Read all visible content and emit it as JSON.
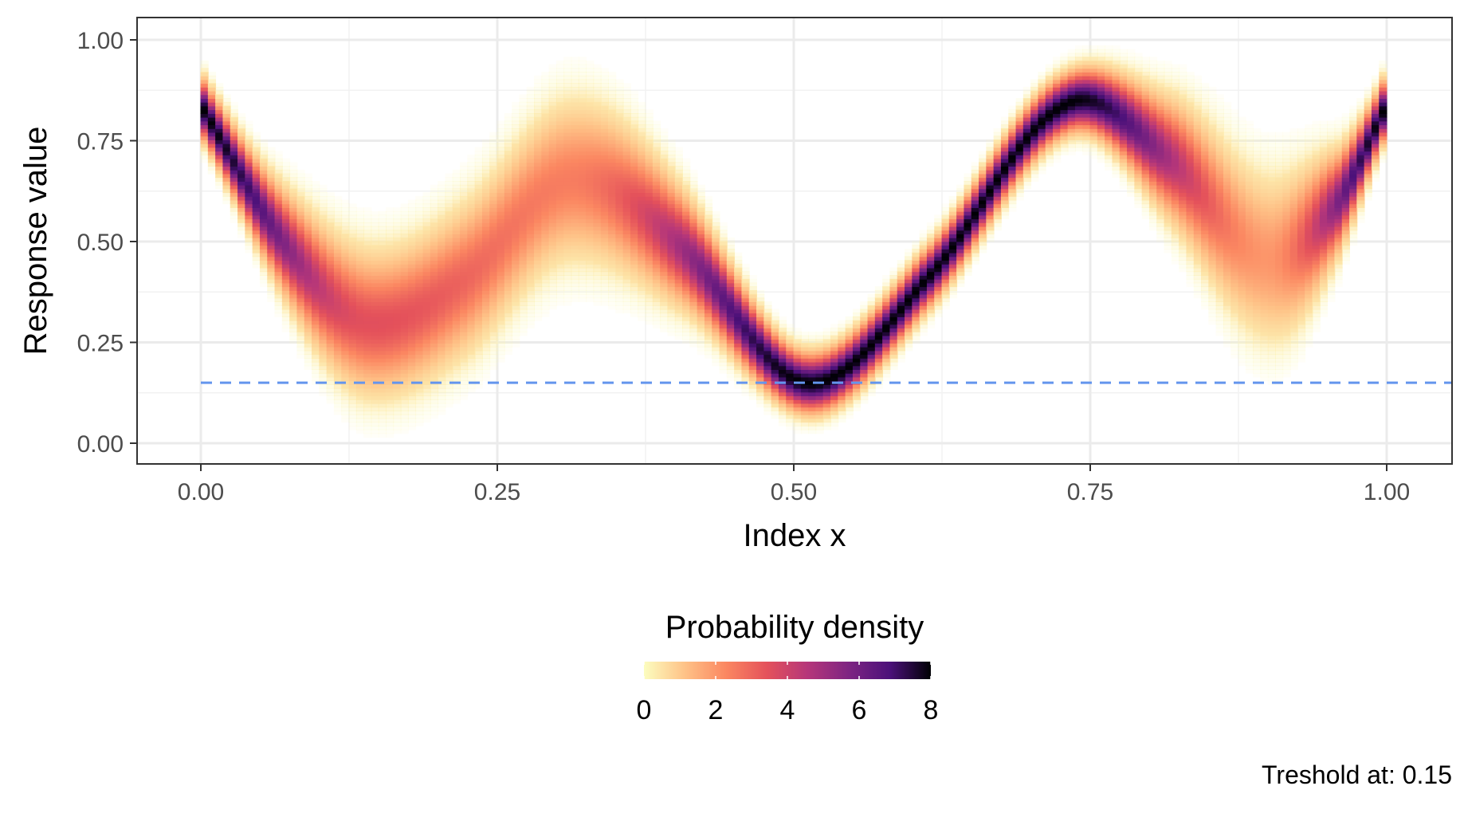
{
  "chart_data": {
    "type": "heatmap",
    "title": "",
    "xlabel": "Index x",
    "ylabel": "Response value",
    "xlim": [
      0,
      1
    ],
    "ylim": [
      0,
      1
    ],
    "x_ticks": [
      "0.00",
      "0.25",
      "0.50",
      "0.75",
      "1.00"
    ],
    "y_ticks": [
      "0.00",
      "0.25",
      "0.50",
      "0.75",
      "1.00"
    ],
    "grid": true,
    "mean_curve": {
      "x": [
        0.0,
        0.07,
        0.14,
        0.22,
        0.31,
        0.4,
        0.51,
        0.61,
        0.73,
        0.82,
        0.9,
        0.96,
        1.0
      ],
      "y": [
        0.84,
        0.5,
        0.3,
        0.4,
        0.65,
        0.5,
        0.15,
        0.4,
        0.84,
        0.7,
        0.46,
        0.6,
        0.84
      ]
    },
    "density_peaks": [
      {
        "x": 0.0,
        "y": 0.84,
        "density": 8
      },
      {
        "x": 0.14,
        "y": 0.3,
        "density": 3.5
      },
      {
        "x": 0.31,
        "y": 0.65,
        "density": 2.5
      },
      {
        "x": 0.51,
        "y": 0.15,
        "density": 8
      },
      {
        "x": 0.73,
        "y": 0.84,
        "density": 8
      },
      {
        "x": 0.9,
        "y": 0.46,
        "density": 2
      },
      {
        "x": 1.0,
        "y": 0.84,
        "density": 8
      }
    ],
    "threshold": {
      "y": 0.15,
      "color": "#6495ED",
      "style": "dashed"
    },
    "legend": {
      "title": "Probability density",
      "position": "bottom",
      "labels": [
        "0",
        "2",
        "4",
        "6",
        "8"
      ],
      "range": [
        0,
        8
      ],
      "palette": [
        "#FCFDBF",
        "#FEC287",
        "#FB8761",
        "#E4515B",
        "#B5367A",
        "#7E2482",
        "#4C117A",
        "#000004"
      ]
    },
    "caption": "Treshold at: 0.15"
  }
}
